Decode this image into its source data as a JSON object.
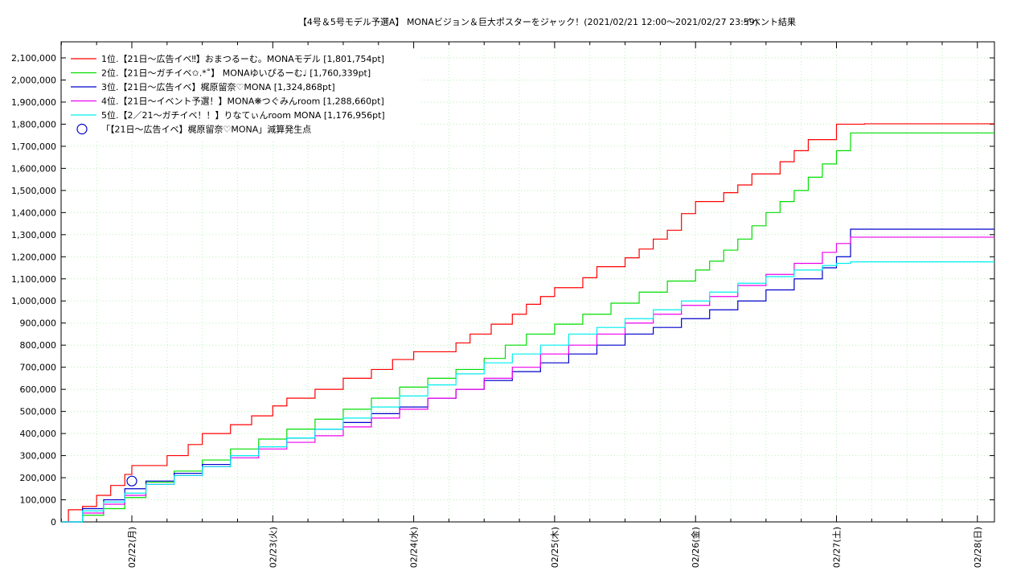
{
  "chart_data": {
    "type": "line",
    "title": "【4号＆5号モデル予選A】 MONAビジョン＆巨大ポスターをジャック！(2021/02/21 12:00〜2021/02/27 23:59)",
    "subtitle": "イベント結果",
    "x_range_days": [
      -0.5,
      6.1
    ],
    "ylim": [
      0,
      2100000
    ],
    "y_ticks": [
      0,
      100000,
      200000,
      300000,
      400000,
      500000,
      600000,
      700000,
      800000,
      900000,
      1000000,
      1100000,
      1200000,
      1300000,
      1400000,
      1500000,
      1600000,
      1700000,
      1800000,
      1900000,
      2000000,
      2100000
    ],
    "y_tick_labels": [
      "0",
      "100,000",
      "200,000",
      "300,000",
      "400,000",
      "500,000",
      "600,000",
      "700,000",
      "800,000",
      "900,000",
      "1,000,000",
      "1,100,000",
      "1,200,000",
      "1,300,000",
      "1,400,000",
      "1,500,000",
      "1,600,000",
      "1,700,000",
      "1,800,000",
      "1,900,000",
      "2,000,000",
      "2,100,000"
    ],
    "x_ticks": [
      0,
      1,
      2,
      3,
      4,
      5,
      6
    ],
    "x_tick_labels": [
      "02/22(月)",
      "02/23(火)",
      "02/24(水)",
      "02/25(木)",
      "02/26(金)",
      "02/27(土)",
      "02/28(日)"
    ],
    "grid": true,
    "legend_position": "top-left",
    "series": [
      {
        "name": "1位.【21日〜広告イベ‼】おまつるーむ。MONAモデル [1,801,754pt]",
        "color": "#ff0000",
        "x": [
          -0.5,
          -0.45,
          -0.35,
          -0.25,
          -0.15,
          -0.05,
          0.0,
          0.25,
          0.4,
          0.5,
          0.7,
          0.85,
          1.0,
          1.1,
          1.3,
          1.5,
          1.7,
          1.85,
          2.0,
          2.3,
          2.4,
          2.55,
          2.7,
          2.8,
          2.9,
          3.0,
          3.2,
          3.3,
          3.5,
          3.6,
          3.7,
          3.8,
          3.9,
          4.0,
          4.2,
          4.3,
          4.4,
          4.6,
          4.7,
          4.8,
          5.0,
          5.2,
          5.3,
          5.5,
          5.7,
          5.8,
          5.9,
          6.0,
          6.1
        ],
        "y": [
          0,
          55000,
          70000,
          120000,
          165000,
          215000,
          255000,
          300000,
          350000,
          400000,
          440000,
          480000,
          525000,
          560000,
          600000,
          650000,
          690000,
          735000,
          770000,
          810000,
          850000,
          895000,
          940000,
          985000,
          1020000,
          1060000,
          1105000,
          1155000,
          1195000,
          1235000,
          1280000,
          1320000,
          1395000,
          1450000,
          1490000,
          1525000,
          1575000,
          1630000,
          1680000,
          1730000,
          1800000,
          1801754,
          1801754,
          1801754,
          1801754,
          1801754,
          1801754,
          1801754,
          1801754
        ]
      },
      {
        "name": "2位.【21日〜ガチイベ✩.*˚】 MONAゆいぴるーむ♩ [1,760,339pt]",
        "color": "#00dd00",
        "x": [
          -0.5,
          -0.35,
          -0.2,
          -0.05,
          0.1,
          0.3,
          0.5,
          0.7,
          0.9,
          1.1,
          1.3,
          1.5,
          1.7,
          1.9,
          2.1,
          2.3,
          2.5,
          2.65,
          2.8,
          3.0,
          3.2,
          3.4,
          3.6,
          3.8,
          4.0,
          4.1,
          4.2,
          4.3,
          4.4,
          4.5,
          4.6,
          4.7,
          4.8,
          4.9,
          5.0,
          5.1
        ],
        "y": [
          0,
          30000,
          60000,
          110000,
          180000,
          230000,
          280000,
          330000,
          375000,
          420000,
          465000,
          510000,
          560000,
          610000,
          650000,
          690000,
          740000,
          800000,
          850000,
          895000,
          940000,
          990000,
          1040000,
          1090000,
          1140000,
          1180000,
          1230000,
          1280000,
          1340000,
          1400000,
          1450000,
          1500000,
          1560000,
          1620000,
          1680000,
          1760339
        ]
      },
      {
        "name": "3位.【21日〜広告イベ】梶原留奈♡MONA [1,324,868pt]",
        "color": "#0000cc",
        "x": [
          -0.5,
          -0.35,
          -0.2,
          -0.05,
          0.1,
          0.3,
          0.5,
          0.7,
          0.9,
          1.1,
          1.3,
          1.5,
          1.7,
          1.9,
          2.1,
          2.3,
          2.5,
          2.7,
          2.9,
          3.1,
          3.3,
          3.5,
          3.7,
          3.9,
          4.1,
          4.3,
          4.5,
          4.7,
          4.9,
          5.0,
          5.1
        ],
        "y": [
          0,
          60000,
          100000,
          150000,
          185000,
          220000,
          260000,
          300000,
          340000,
          380000,
          420000,
          450000,
          490000,
          520000,
          560000,
          600000,
          640000,
          680000,
          720000,
          760000,
          800000,
          850000,
          880000,
          920000,
          960000,
          1000000,
          1050000,
          1100000,
          1150000,
          1200000,
          1324868
        ]
      },
      {
        "name": "4位.【21日〜イベント予選！】MONA❋つぐみんroom [1,288,660pt]",
        "color": "#ee00ee",
        "x": [
          -0.5,
          -0.35,
          -0.2,
          -0.05,
          0.1,
          0.3,
          0.5,
          0.7,
          0.9,
          1.1,
          1.3,
          1.5,
          1.7,
          1.9,
          2.1,
          2.3,
          2.5,
          2.7,
          2.9,
          3.1,
          3.3,
          3.5,
          3.7,
          3.9,
          4.1,
          4.3,
          4.5,
          4.7,
          4.9,
          5.0,
          5.1
        ],
        "y": [
          0,
          40000,
          80000,
          120000,
          170000,
          210000,
          250000,
          290000,
          330000,
          360000,
          390000,
          430000,
          470000,
          510000,
          560000,
          600000,
          650000,
          700000,
          760000,
          800000,
          850000,
          900000,
          940000,
          980000,
          1020000,
          1070000,
          1120000,
          1170000,
          1220000,
          1260000,
          1288660
        ]
      },
      {
        "name": "5位.【2／21〜ガチイベ！！】りなてぃんroom MONA [1,176,956pt]",
        "color": "#00eeee",
        "x": [
          -0.5,
          -0.35,
          -0.2,
          -0.05,
          0.1,
          0.3,
          0.5,
          0.7,
          0.9,
          1.1,
          1.3,
          1.5,
          1.7,
          1.9,
          2.1,
          2.3,
          2.5,
          2.7,
          2.9,
          3.1,
          3.3,
          3.5,
          3.7,
          3.9,
          4.1,
          4.3,
          4.5,
          4.7,
          4.9,
          5.0,
          5.1
        ],
        "y": [
          0,
          50000,
          90000,
          130000,
          170000,
          210000,
          250000,
          300000,
          340000,
          380000,
          420000,
          470000,
          520000,
          570000,
          620000,
          670000,
          720000,
          760000,
          800000,
          850000,
          880000,
          920000,
          960000,
          1000000,
          1040000,
          1080000,
          1110000,
          1140000,
          1160000,
          1170000,
          1176956
        ]
      }
    ],
    "annotation": {
      "label": "「【21日〜広告イベ】梶原留奈♡MONA」減算発生点",
      "marker": "circle",
      "color": "#0000cc",
      "x": 0.0,
      "y": 185000
    }
  }
}
